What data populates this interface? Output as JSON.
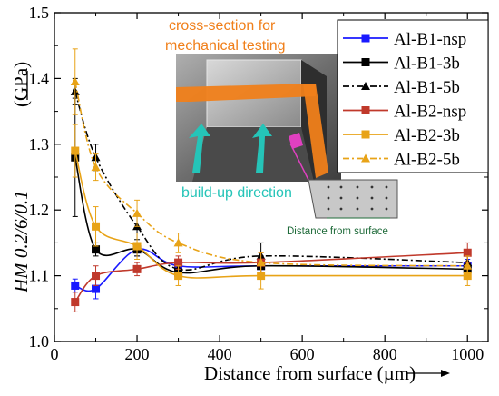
{
  "chart_data": {
    "type": "line",
    "xlabel": "Distance from surface (µm)",
    "ylabel": "HM 0.2/6/0.1 (GPa)",
    "xlim": [
      0,
      1050
    ],
    "ylim": [
      1.0,
      1.5
    ],
    "xticks": [
      0,
      200,
      400,
      600,
      800,
      1000
    ],
    "yticks": [
      1.0,
      1.1,
      1.2,
      1.3,
      1.4,
      1.5
    ],
    "xtick_labels": [
      "0",
      "200",
      "400",
      "600",
      "800",
      "1000"
    ],
    "ytick_labels": [
      "1.0",
      "1.1",
      "1.2",
      "1.3",
      "1.4",
      "1.5"
    ],
    "grid": false,
    "legend_position": "top-right",
    "annotations": {
      "cross_section": "cross-section for mechanical testing",
      "build_up": "build-up direction",
      "distance": "Distance from surface"
    },
    "x": [
      50,
      100,
      200,
      300,
      500,
      1000
    ],
    "series": [
      {
        "name": "Al-B1-nsp",
        "color": "#1a1aff",
        "dash": "solid",
        "marker": "square",
        "values": [
          1.085,
          1.08,
          1.14,
          1.115,
          1.115,
          1.115
        ],
        "errors": [
          0.01,
          0.015,
          0.01,
          0.01,
          0.015,
          0.01
        ]
      },
      {
        "name": "Al-B1-3b",
        "color": "#000000",
        "dash": "solid",
        "marker": "square",
        "values": [
          1.28,
          1.14,
          1.14,
          1.105,
          1.115,
          1.11
        ],
        "errors": [
          0.09,
          0.01,
          0.01,
          0.01,
          0.015,
          0.01
        ]
      },
      {
        "name": "Al-B1-5b",
        "color": "#000000",
        "dash": "dashdot",
        "marker": "triangle",
        "values": [
          1.38,
          1.28,
          1.175,
          1.11,
          1.13,
          1.12
        ],
        "errors": [
          0.02,
          0.02,
          0.02,
          0.015,
          0.02,
          0.015
        ]
      },
      {
        "name": "Al-B2-nsp",
        "color": "#c0392b",
        "dash": "solid",
        "marker": "square",
        "values": [
          1.06,
          1.1,
          1.11,
          1.12,
          1.12,
          1.135
        ],
        "errors": [
          0.015,
          0.015,
          0.01,
          0.01,
          0.015,
          0.015
        ]
      },
      {
        "name": "Al-B2-3b",
        "color": "#e8a317",
        "dash": "solid",
        "marker": "square",
        "values": [
          1.29,
          1.175,
          1.145,
          1.1,
          1.1,
          1.1
        ],
        "errors": [
          0.04,
          0.03,
          0.02,
          0.015,
          0.02,
          0.015
        ]
      },
      {
        "name": "Al-B2-5b",
        "color": "#e8a317",
        "dash": "dashdot",
        "marker": "triangle",
        "values": [
          1.395,
          1.265,
          1.195,
          1.15,
          1.12,
          1.115
        ],
        "errors": [
          0.05,
          0.02,
          0.02,
          0.015,
          0.015,
          0.015
        ]
      }
    ]
  }
}
